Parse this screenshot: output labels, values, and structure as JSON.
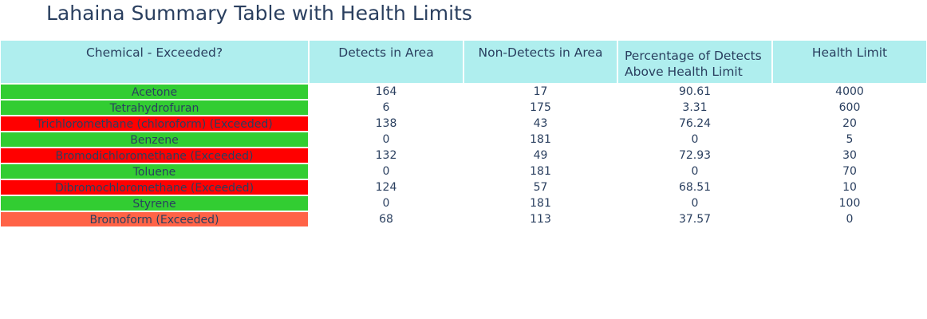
{
  "title": "Lahaina Summary Table with Health Limits",
  "chart_data": {
    "type": "table",
    "title": "Lahaina Summary Table with Health Limits",
    "columns": [
      "Chemical - Exceeded?",
      "Detects in Area",
      "Non-Detects in Area",
      "Percentage of Detects\nAbove Health Limit",
      "Health Limit"
    ],
    "rows": [
      {
        "chemical": "Acetone",
        "detects": "164",
        "non_detects": "17",
        "pct": "90.61",
        "limit": "4000",
        "color": "#32cd32"
      },
      {
        "chemical": "Tetrahydrofuran",
        "detects": "6",
        "non_detects": "175",
        "pct": "3.31",
        "limit": "600",
        "color": "#32cd32"
      },
      {
        "chemical": "Trichloromethane (chloroform) (Exceeded)",
        "detects": "138",
        "non_detects": "43",
        "pct": "76.24",
        "limit": "20",
        "color": "#ff0000"
      },
      {
        "chemical": "Benzene",
        "detects": "0",
        "non_detects": "181",
        "pct": "0",
        "limit": "5",
        "color": "#32cd32"
      },
      {
        "chemical": "Bromodichloromethane (Exceeded)",
        "detects": "132",
        "non_detects": "49",
        "pct": "72.93",
        "limit": "30",
        "color": "#ff0000"
      },
      {
        "chemical": "Toluene",
        "detects": "0",
        "non_detects": "181",
        "pct": "0",
        "limit": "70",
        "color": "#32cd32"
      },
      {
        "chemical": "Dibromochloromethane (Exceeded)",
        "detects": "124",
        "non_detects": "57",
        "pct": "68.51",
        "limit": "10",
        "color": "#ff0000"
      },
      {
        "chemical": "Styrene",
        "detects": "0",
        "non_detects": "181",
        "pct": "0",
        "limit": "100",
        "color": "#32cd32"
      },
      {
        "chemical": "Bromoform (Exceeded)",
        "detects": "68",
        "non_detects": "113",
        "pct": "37.57",
        "limit": "0",
        "color": "#ff6347"
      }
    ],
    "colors": {
      "header_bg": "#afeeee",
      "text": "#2a3f5f",
      "ok": "#32cd32",
      "exceeded": "#ff0000",
      "exceeded_no_limit": "#ff6347"
    }
  }
}
